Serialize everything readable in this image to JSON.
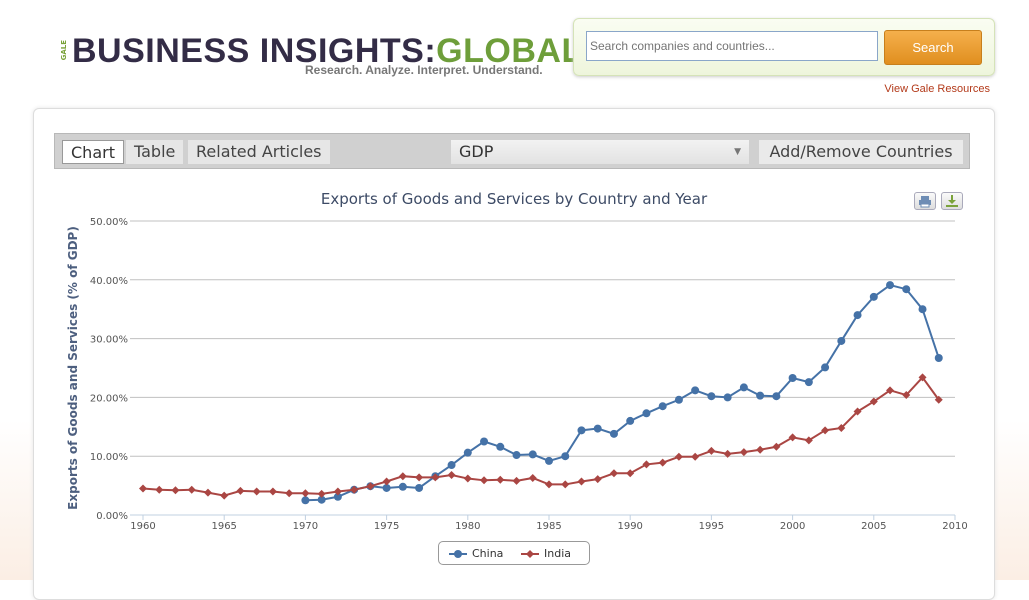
{
  "header": {
    "logo_prefix": "GALE",
    "logo_main": "BUSINESS INSIGHTS:",
    "logo_accent": "GLOBAL",
    "tagline": "Research. Analyze. Interpret. Understand.",
    "search_placeholder": "Search companies and countries...",
    "search_button": "Search",
    "view_resources": "View Gale Resources"
  },
  "toolbar": {
    "tabs": [
      {
        "label": "Chart"
      },
      {
        "label": "Table"
      },
      {
        "label": "Related Articles"
      }
    ],
    "measure": "GDP",
    "add_remove": "Add/Remove Countries"
  },
  "colors": {
    "china": "#4572a7",
    "india": "#aa4643"
  },
  "chart_data": {
    "type": "line",
    "title": "Exports of Goods and Services by Country and Year",
    "xlabel": "",
    "ylabel": "Exports of Goods and Services (% of GDP)",
    "xlim": [
      1960,
      2010
    ],
    "ylim": [
      0,
      50
    ],
    "x_ticks": [
      "1960",
      "1965",
      "1970",
      "1975",
      "1980",
      "1985",
      "1990",
      "1995",
      "2000",
      "2005",
      "2010"
    ],
    "y_ticks": [
      "0.00%",
      "10.00%",
      "20.00%",
      "30.00%",
      "40.00%",
      "50.00%"
    ],
    "legend_position": "bottom-center",
    "series": [
      {
        "name": "China",
        "start_year": 1970,
        "values": [
          2.5,
          2.6,
          3.1,
          4.3,
          4.9,
          4.6,
          4.8,
          4.6,
          6.6,
          8.5,
          10.6,
          12.5,
          11.6,
          10.2,
          10.3,
          9.2,
          10.0,
          14.4,
          14.7,
          13.8,
          16.0,
          17.3,
          18.5,
          19.6,
          21.2,
          20.2,
          20.0,
          21.7,
          20.3,
          20.2,
          23.3,
          22.6,
          25.1,
          29.6,
          34.0,
          37.1,
          39.1,
          38.4,
          35.0,
          26.7
        ]
      },
      {
        "name": "India",
        "start_year": 1960,
        "values": [
          4.5,
          4.3,
          4.2,
          4.3,
          3.8,
          3.3,
          4.1,
          4.0,
          4.0,
          3.7,
          3.7,
          3.6,
          4.0,
          4.3,
          4.9,
          5.7,
          6.6,
          6.4,
          6.4,
          6.8,
          6.2,
          5.9,
          6.0,
          5.8,
          6.3,
          5.2,
          5.2,
          5.7,
          6.1,
          7.1,
          7.1,
          8.6,
          8.9,
          9.9,
          9.9,
          10.9,
          10.4,
          10.7,
          11.1,
          11.6,
          13.2,
          12.7,
          14.4,
          14.8,
          17.6,
          19.3,
          21.2,
          20.4,
          23.4,
          19.6
        ]
      }
    ]
  }
}
